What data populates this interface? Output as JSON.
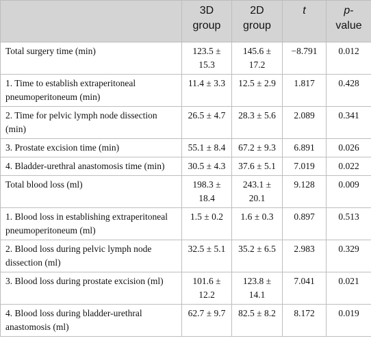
{
  "table": {
    "header": [
      "3D group",
      "2D group",
      "t",
      "p-value"
    ],
    "rows": [
      [
        "Total surgery time (min)",
        "123.5 ± 15.3",
        "145.6 ± 17.2",
        "−8.791",
        "0.012"
      ],
      [
        "1. Time to establish extraperitoneal pneumoperitoneum (min)",
        "11.4 ± 3.3",
        "12.5 ± 2.9",
        "1.817",
        "0.428"
      ],
      [
        "2. Time for pelvic lymph node dissection (min)",
        "26.5 ± 4.7",
        "28.3 ± 5.6",
        "2.089",
        "0.341"
      ],
      [
        "3. Prostate excision time (min)",
        "55.1 ± 8.4",
        "67.2 ± 9.3",
        "6.891",
        "0.026"
      ],
      [
        "4. Bladder-urethral anastomosis time (min)",
        "30.5 ± 4.3",
        "37.6 ± 5.1",
        "7.019",
        "0.022"
      ],
      [
        "Total blood loss (ml)",
        "198.3 ± 18.4",
        "243.1 ± 20.1",
        "9.128",
        "0.009"
      ],
      [
        "1. Blood loss in establishing extraperitoneal pneumoperitoneum (ml)",
        "1.5 ± 0.2",
        "1.6 ± 0.3",
        "0.897",
        "0.513"
      ],
      [
        "2. Blood loss during pelvic lymph node dissection (ml)",
        "32.5 ± 5.1",
        "35.2 ± 6.5",
        "2.983",
        "0.329"
      ],
      [
        "3. Blood loss during prostate excision (ml)",
        "101.6 ± 12.2",
        "123.8 ± 14.1",
        "7.041",
        "0.021"
      ],
      [
        "4. Blood loss during bladder-urethral anastomosis (ml)",
        "62.7 ± 9.7",
        "82.5 ± 8.2",
        "8.172",
        "0.019"
      ]
    ]
  }
}
